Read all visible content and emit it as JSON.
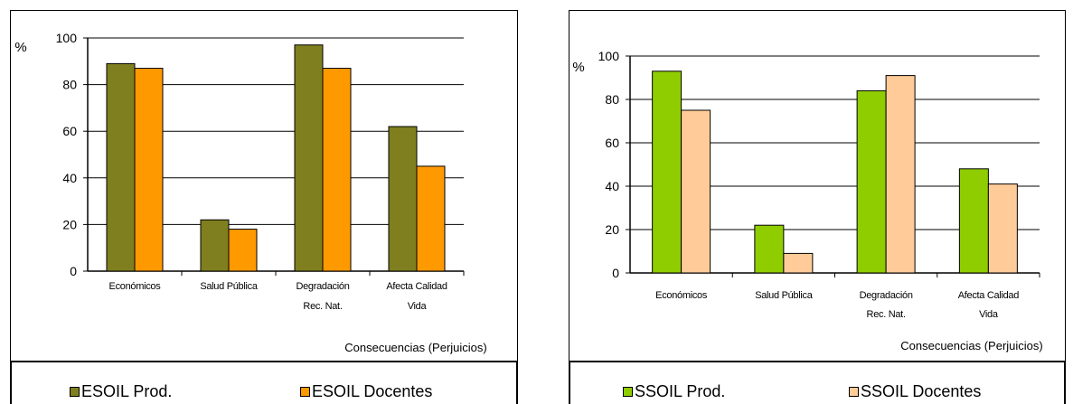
{
  "chart_data": [
    {
      "type": "bar",
      "ylabel": "%",
      "xlabel": "Consecuencias (Perjuicios)",
      "ylim": [
        0,
        100
      ],
      "yticks": [
        0,
        20,
        40,
        60,
        80,
        100
      ],
      "categories": [
        [
          "Económicos"
        ],
        [
          "Salud Pública"
        ],
        [
          "Degradación",
          "Rec. Nat."
        ],
        [
          "Afecta Calidad",
          "Vida"
        ]
      ],
      "series": [
        {
          "name": "ESOIL Prod.",
          "color": "#7f7f1f",
          "values": [
            89,
            22,
            97,
            62
          ]
        },
        {
          "name": "ESOIL Docentes",
          "color": "#ff9900",
          "values": [
            87,
            18,
            87,
            45
          ]
        }
      ],
      "grid": true,
      "legend": "bottom"
    },
    {
      "type": "bar",
      "ylabel": "%",
      "xlabel": "Consecuencias (Perjuicios)",
      "ylim": [
        0,
        100
      ],
      "yticks": [
        0,
        20,
        40,
        60,
        80,
        100
      ],
      "categories": [
        [
          "Económicos"
        ],
        [
          "Salud Pública"
        ],
        [
          "Degradación",
          "Rec. Nat."
        ],
        [
          "Afecta Calidad",
          "Vida"
        ]
      ],
      "series": [
        {
          "name": "SSOIL Prod.",
          "color": "#8fcc00",
          "values": [
            93,
            22,
            84,
            48
          ]
        },
        {
          "name": "SSOIL Docentes",
          "color": "#ffcc99",
          "values": [
            75,
            9,
            91,
            41
          ]
        }
      ],
      "grid": true,
      "legend": "bottom"
    }
  ]
}
